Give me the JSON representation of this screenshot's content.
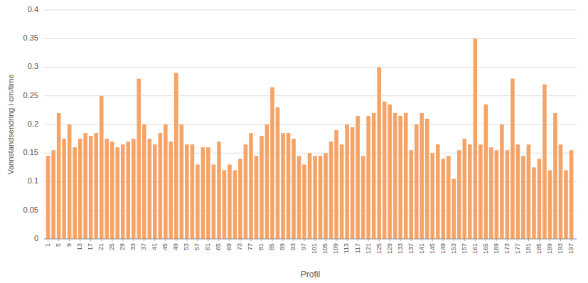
{
  "chart_data": {
    "type": "bar",
    "xlabel": "Profil",
    "ylabel": "Vannstandsendring i cm/time",
    "x": [
      1,
      3,
      5,
      7,
      9,
      11,
      13,
      15,
      17,
      19,
      21,
      23,
      25,
      27,
      29,
      31,
      33,
      35,
      37,
      39,
      41,
      43,
      45,
      47,
      49,
      51,
      53,
      55,
      57,
      59,
      61,
      63,
      65,
      67,
      69,
      71,
      73,
      75,
      77,
      79,
      81,
      83,
      85,
      87,
      89,
      91,
      93,
      95,
      97,
      99,
      101,
      103,
      105,
      107,
      109,
      111,
      113,
      115,
      117,
      119,
      121,
      123,
      125,
      127,
      129,
      131,
      133,
      135,
      137,
      139,
      141,
      143,
      145,
      147,
      149,
      151,
      153,
      155,
      157,
      159,
      161,
      163,
      165,
      167,
      169,
      171,
      173,
      175,
      177,
      179,
      181,
      183,
      185,
      187,
      189,
      191,
      193,
      195,
      197
    ],
    "values": [
      0.145,
      0.155,
      0.22,
      0.175,
      0.2,
      0.16,
      0.175,
      0.185,
      0.18,
      0.185,
      0.25,
      0.175,
      0.17,
      0.16,
      0.165,
      0.17,
      0.175,
      0.28,
      0.2,
      0.175,
      0.165,
      0.185,
      0.2,
      0.17,
      0.29,
      0.2,
      0.165,
      0.165,
      0.13,
      0.16,
      0.16,
      0.13,
      0.17,
      0.12,
      0.13,
      0.12,
      0.14,
      0.165,
      0.185,
      0.145,
      0.18,
      0.2,
      0.265,
      0.23,
      0.185,
      0.185,
      0.175,
      0.145,
      0.13,
      0.15,
      0.145,
      0.145,
      0.15,
      0.17,
      0.19,
      0.165,
      0.2,
      0.195,
      0.215,
      0.145,
      0.215,
      0.22,
      0.3,
      0.24,
      0.235,
      0.22,
      0.215,
      0.22,
      0.155,
      0.2,
      0.22,
      0.21,
      0.15,
      0.165,
      0.14,
      0.145,
      0.105,
      0.155,
      0.175,
      0.165,
      0.35,
      0.165,
      0.235,
      0.16,
      0.155,
      0.2,
      0.155,
      0.28,
      0.165,
      0.145,
      0.165,
      0.125,
      0.14,
      0.27,
      0.12,
      0.22,
      0.165,
      0.12,
      0.155
    ],
    "color": "#F5A468",
    "xlim": [
      -0.5,
      199
    ],
    "xticks": [
      1,
      5,
      9,
      13,
      17,
      21,
      25,
      29,
      33,
      37,
      41,
      45,
      49,
      53,
      57,
      61,
      65,
      69,
      73,
      77,
      81,
      85,
      89,
      93,
      97,
      101,
      105,
      109,
      113,
      117,
      121,
      125,
      129,
      133,
      137,
      141,
      145,
      149,
      153,
      157,
      161,
      165,
      169,
      173,
      177,
      181,
      185,
      189,
      193,
      197
    ],
    "ylim": [
      0,
      0.4
    ],
    "yticks": [
      0,
      0.05,
      0.1,
      0.15,
      0.2,
      0.25,
      0.3,
      0.35,
      0.4
    ],
    "grid": true
  }
}
